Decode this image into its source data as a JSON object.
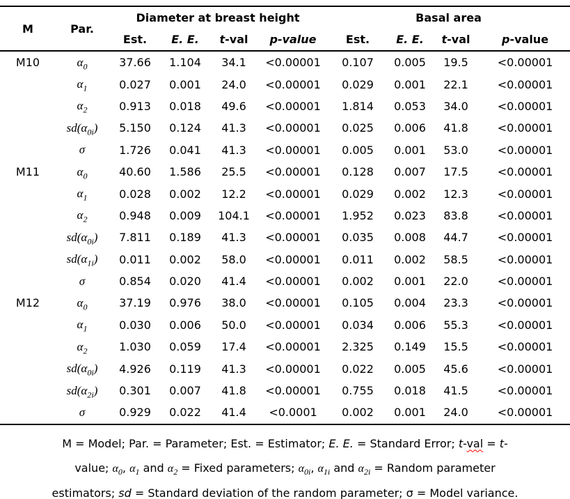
{
  "colors": {
    "text": "#000000",
    "background": "#ffffff",
    "spellcheck_squiggle": "#ff0000"
  },
  "table": {
    "headers": {
      "m": "M",
      "par": "Par.",
      "group_dbh": "Diameter at breast height",
      "group_ba": "Basal area",
      "est": "Est.",
      "ee": "E. E.",
      "t_italic": "t",
      "t_rest": "-val",
      "p_full_italic": "p-value",
      "p_italic": "p",
      "p_rest": "-value"
    },
    "rows": [
      {
        "model": "M10",
        "param": [
          {
            "t": "α"
          },
          {
            "t": "0",
            "sub": true
          }
        ],
        "values": [
          "37.66",
          "1.104",
          "34.1",
          "<0.00001",
          "0.107",
          "0.005",
          "19.5",
          "<0.00001"
        ]
      },
      {
        "model": "",
        "param": [
          {
            "t": "α"
          },
          {
            "t": "1",
            "sub": true
          }
        ],
        "values": [
          "0.027",
          "0.001",
          "24.0",
          "<0.00001",
          "0.029",
          "0.001",
          "22.1",
          "<0.00001"
        ]
      },
      {
        "model": "",
        "param": [
          {
            "t": "α"
          },
          {
            "t": "2",
            "sub": true
          }
        ],
        "values": [
          "0.913",
          "0.018",
          "49.6",
          "<0.00001",
          "1.814",
          "0.053",
          "34.0",
          "<0.00001"
        ]
      },
      {
        "model": "",
        "param": [
          {
            "t": "sd("
          },
          {
            "t": "α"
          },
          {
            "t": "0i",
            "sub": true
          },
          {
            "t": ")"
          }
        ],
        "values": [
          "5.150",
          "0.124",
          "41.3",
          "<0.00001",
          "0.025",
          "0.006",
          "41.8",
          "<0.00001"
        ]
      },
      {
        "model": "",
        "param": [
          {
            "t": "σ"
          }
        ],
        "values": [
          "1.726",
          "0.041",
          "41.3",
          "<0.00001",
          "0.005",
          "0.001",
          "53.0",
          "<0.00001"
        ]
      },
      {
        "model": "M11",
        "param": [
          {
            "t": "α"
          },
          {
            "t": "0",
            "sub": true
          }
        ],
        "values": [
          "40.60",
          "1.586",
          "25.5",
          "<0.00001",
          "0.128",
          "0.007",
          "17.5",
          "<0.00001"
        ]
      },
      {
        "model": "",
        "param": [
          {
            "t": "α"
          },
          {
            "t": "1",
            "sub": true
          }
        ],
        "values": [
          "0.028",
          "0.002",
          "12.2",
          "<0.00001",
          "0.029",
          "0.002",
          "12.3",
          "<0.00001"
        ]
      },
      {
        "model": "",
        "param": [
          {
            "t": "α"
          },
          {
            "t": "2",
            "sub": true
          }
        ],
        "values": [
          "0.948",
          "0.009",
          "104.1",
          "<0.00001",
          "1.952",
          "0.023",
          "83.8",
          "<0.00001"
        ]
      },
      {
        "model": "",
        "param": [
          {
            "t": "sd("
          },
          {
            "t": "α"
          },
          {
            "t": "0i",
            "sub": true
          },
          {
            "t": ")"
          }
        ],
        "values": [
          "7.811",
          "0.189",
          "41.3",
          "<0.00001",
          "0.035",
          "0.008",
          "44.7",
          "<0.00001"
        ]
      },
      {
        "model": "",
        "param": [
          {
            "t": "sd("
          },
          {
            "t": "α"
          },
          {
            "t": "1i",
            "sub": true
          },
          {
            "t": ")"
          }
        ],
        "values": [
          "0.011",
          "0.002",
          "58.0",
          "<0.00001",
          "0.011",
          "0.002",
          "58.5",
          "<0.00001"
        ]
      },
      {
        "model": "",
        "param": [
          {
            "t": "σ"
          }
        ],
        "values": [
          "0.854",
          "0.020",
          "41.4",
          "<0.00001",
          "0.002",
          "0.001",
          "22.0",
          "<0.00001"
        ]
      },
      {
        "model": "M12",
        "param": [
          {
            "t": "α"
          },
          {
            "t": "0",
            "sub": true
          }
        ],
        "values": [
          "37.19",
          "0.976",
          "38.0",
          "<0.00001",
          "0.105",
          "0.004",
          "23.3",
          "<0.00001"
        ]
      },
      {
        "model": "",
        "param": [
          {
            "t": "α"
          },
          {
            "t": "1",
            "sub": true
          }
        ],
        "values": [
          "0.030",
          "0.006",
          "50.0",
          "<0.00001",
          "0.034",
          "0.006",
          "55.3",
          "<0.00001"
        ]
      },
      {
        "model": "",
        "param": [
          {
            "t": "α"
          },
          {
            "t": "2",
            "sub": true
          }
        ],
        "values": [
          "1.030",
          "0.059",
          "17.4",
          "<0.00001",
          "2.325",
          "0.149",
          "15.5",
          "<0.00001"
        ]
      },
      {
        "model": "",
        "param": [
          {
            "t": "sd("
          },
          {
            "t": "α"
          },
          {
            "t": "0i",
            "sub": true
          },
          {
            "t": ")"
          }
        ],
        "values": [
          "4.926",
          "0.119",
          "41.3",
          "<0.00001",
          "0.022",
          "0.005",
          "45.6",
          "<0.00001"
        ]
      },
      {
        "model": "",
        "param": [
          {
            "t": "sd("
          },
          {
            "t": "α"
          },
          {
            "t": "2i",
            "sub": true
          },
          {
            "t": ")"
          }
        ],
        "values": [
          "0.301",
          "0.007",
          "41.8",
          "<0.00001",
          "0.755",
          "0.018",
          "41.5",
          "<0.00001"
        ]
      },
      {
        "model": "",
        "param": [
          {
            "t": "σ"
          }
        ],
        "values": [
          "0.929",
          "0.022",
          "41.4",
          "<0.0001",
          "0.002",
          "0.001",
          "24.0",
          "<0.00001"
        ]
      }
    ]
  },
  "footnote": {
    "lines": [
      [
        {
          "t": "M = Model; Par. = Parameter; Est. = Estimator; "
        },
        {
          "t": "E. E.",
          "cls": "it"
        },
        {
          "t": " = Standard Error; "
        },
        {
          "t": "t",
          "cls": "it"
        },
        {
          "t": "-"
        },
        {
          "t": "val",
          "cls": "sq"
        },
        {
          "t": " = "
        },
        {
          "t": "t",
          "cls": "it"
        },
        {
          "t": "-"
        }
      ],
      [
        {
          "t": "value; "
        },
        {
          "t": "α",
          "cls": "math"
        },
        {
          "t": "0",
          "sub": true,
          "cls": "math"
        },
        {
          "t": ", "
        },
        {
          "t": "α",
          "cls": "math"
        },
        {
          "t": "1",
          "sub": true,
          "cls": "math"
        },
        {
          "t": " and "
        },
        {
          "t": "α",
          "cls": "math"
        },
        {
          "t": "2",
          "sub": true,
          "cls": "math"
        },
        {
          "t": " = Fixed parameters; "
        },
        {
          "t": "α",
          "cls": "math"
        },
        {
          "t": "0i",
          "sub": true,
          "cls": "math"
        },
        {
          "t": ", "
        },
        {
          "t": "α",
          "cls": "math"
        },
        {
          "t": "1i",
          "sub": true,
          "cls": "math"
        },
        {
          "t": " and "
        },
        {
          "t": "α",
          "cls": "math"
        },
        {
          "t": "2i",
          "sub": true,
          "cls": "math"
        },
        {
          "t": " = Random parameter"
        }
      ],
      [
        {
          "t": "estimators; "
        },
        {
          "t": "sd",
          "cls": "it sq"
        },
        {
          "t": " = Standard deviation of the random parameter; σ = Model variance."
        }
      ]
    ]
  }
}
